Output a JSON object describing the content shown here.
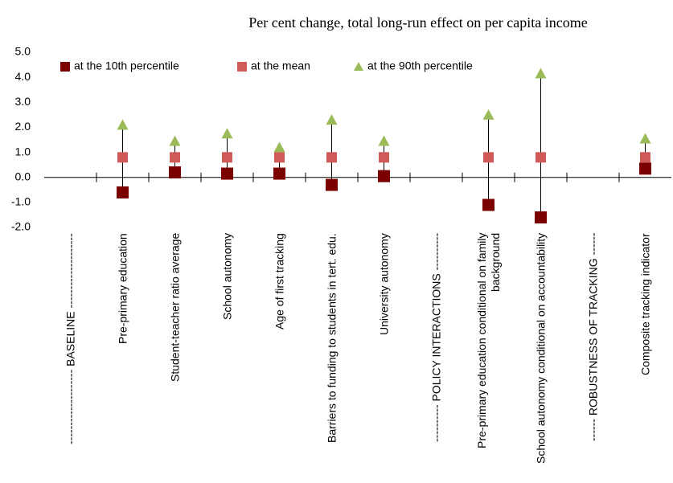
{
  "chart_data": {
    "type": "range_dot",
    "title": "Per cent change, total long-run effect on per capita income",
    "categories": [
      "-------------------- BASELINE --------------------",
      "Pre-primary education",
      "Student-teacher ratio average",
      "School autonomy",
      "Age of first tracking",
      "Barriers to funding to students in tert. edu.",
      "University autonomy",
      "---------- POLICY INTERACTIONS ----------",
      "Pre-primary education conditional on family background",
      "School autonomy conditional on accountability",
      "------ ROBUSTNESS OF TRACKING ------",
      "Composite tracking indicator"
    ],
    "series": [
      {
        "name": "at the 10th percentile",
        "color": "#7b0000",
        "marker": "square",
        "values": [
          null,
          -0.6,
          0.2,
          0.15,
          0.15,
          -0.3,
          0.05,
          null,
          -1.1,
          -1.6,
          null,
          0.35
        ]
      },
      {
        "name": "at the mean",
        "color": "#cf5a58",
        "marker": "square",
        "values": [
          null,
          0.8,
          0.8,
          0.8,
          0.8,
          0.8,
          0.8,
          null,
          0.8,
          0.8,
          null,
          0.8
        ]
      },
      {
        "name": "at the 90th percentile",
        "color": "#9bbb59",
        "marker": "triangle",
        "values": [
          null,
          2.1,
          1.45,
          1.75,
          1.2,
          2.3,
          1.45,
          null,
          2.5,
          4.15,
          null,
          1.55
        ]
      }
    ],
    "ylim": [
      -2,
      5
    ],
    "yticks": [
      {
        "value": 5,
        "label": "5.0"
      },
      {
        "value": 4,
        "label": "4.0"
      },
      {
        "value": 3,
        "label": "3.0"
      },
      {
        "value": 2,
        "label": "2.0"
      },
      {
        "value": 1,
        "label": "1.0"
      },
      {
        "value": 0,
        "label": "0.0"
      },
      {
        "value": -1,
        "label": "-1.0"
      },
      {
        "value": -2,
        "label": "-2.0"
      }
    ],
    "grid": false,
    "legend": "top-left"
  }
}
